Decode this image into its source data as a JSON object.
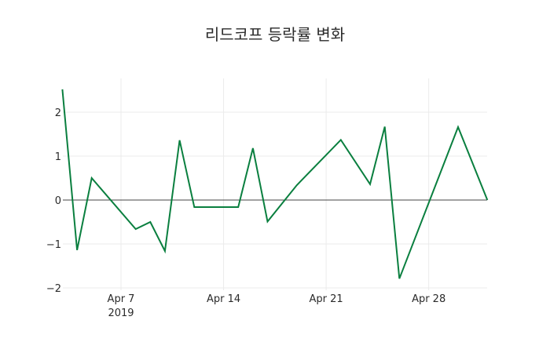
{
  "title": "리드코프 등락률 변화",
  "chart_data": {
    "type": "line",
    "title": "리드코프 등락률 변화",
    "xlabel": "",
    "ylabel": "",
    "x": [
      "2019-04-03",
      "2019-04-04",
      "2019-04-05",
      "2019-04-08",
      "2019-04-09",
      "2019-04-10",
      "2019-04-11",
      "2019-04-12",
      "2019-04-15",
      "2019-04-16",
      "2019-04-17",
      "2019-04-19",
      "2019-04-22",
      "2019-04-24",
      "2019-04-25",
      "2019-04-26",
      "2019-04-30",
      "2019-05-02"
    ],
    "series": [
      {
        "name": "등락률",
        "color": "#0a7f3f",
        "values": [
          2.52,
          -1.14,
          0.5,
          -0.66,
          -0.5,
          -1.16,
          1.36,
          -0.16,
          -0.16,
          1.18,
          -0.49,
          0.34,
          1.37,
          0.36,
          1.67,
          -1.79,
          1.66,
          0.0
        ]
      }
    ],
    "y_ticks": [
      "2",
      "1",
      "0",
      "−1",
      "−2"
    ],
    "y_tick_values": [
      2,
      1,
      0,
      -1,
      -2
    ],
    "x_ticks": [
      "Apr 7",
      "Apr 14",
      "Apr 21",
      "Apr 28"
    ],
    "x_tick_sub": "2019",
    "ylim": [
      -2.0,
      2.8
    ],
    "grid": true,
    "legend": "none"
  },
  "colors": {
    "line": "#0a7f3f",
    "grid": "#ebebeb",
    "zero_line": "#444444"
  }
}
